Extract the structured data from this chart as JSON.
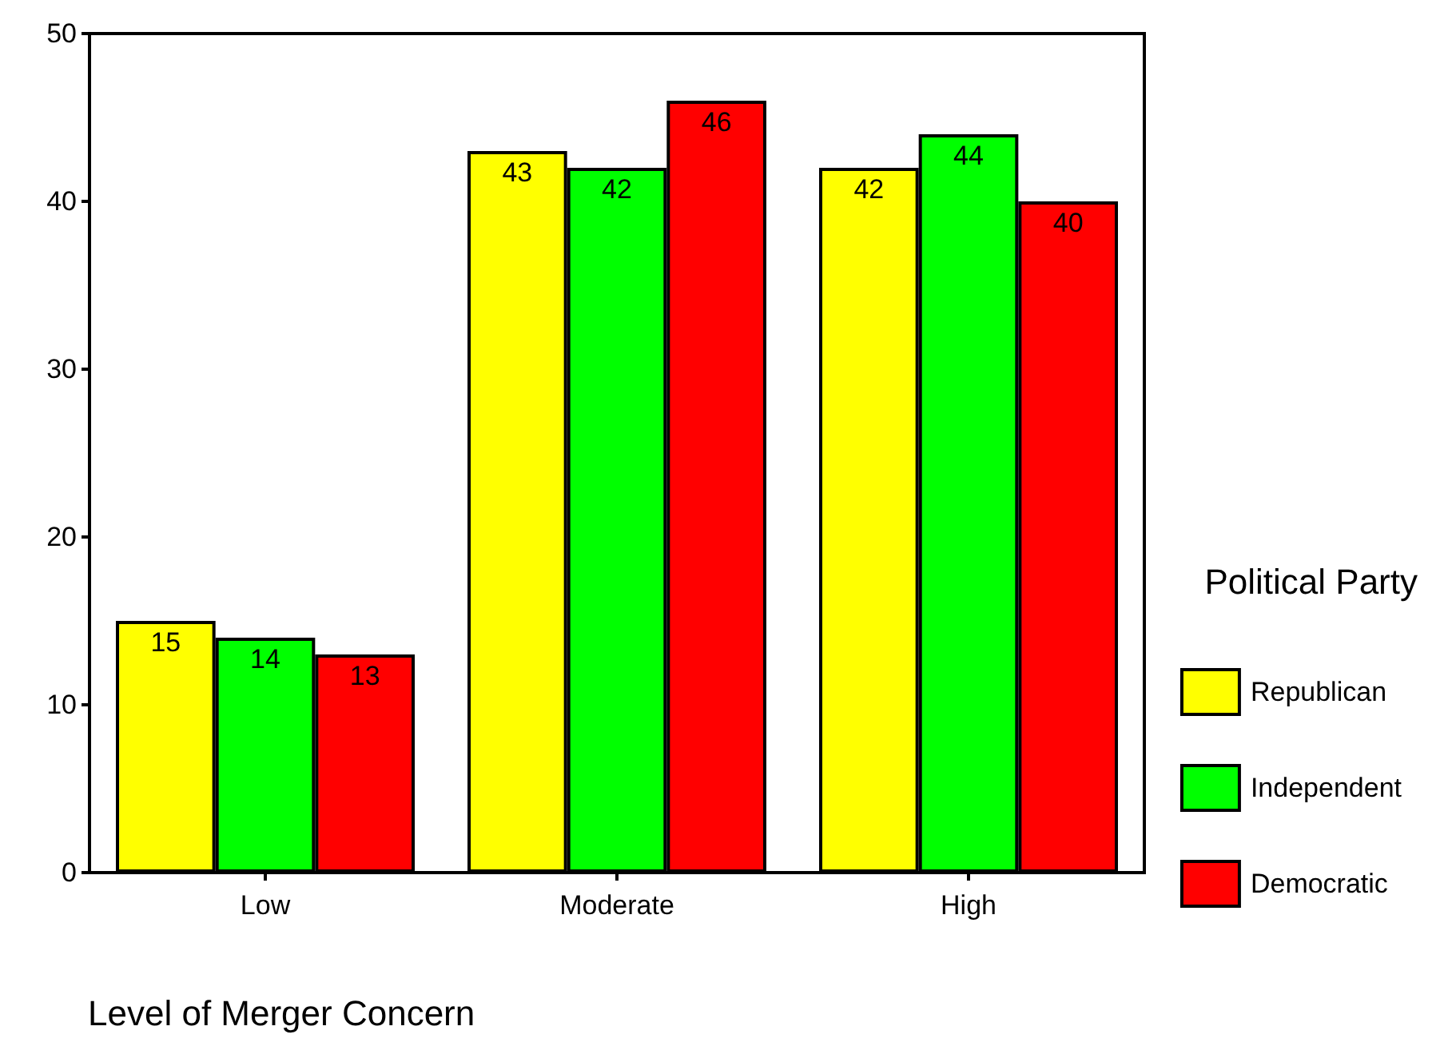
{
  "chart_data": {
    "type": "bar",
    "xlabel": "Level of Merger Concern",
    "legend_title": "Political Party",
    "categories": [
      "Low",
      "Moderate",
      "High"
    ],
    "series": [
      {
        "name": "Republican",
        "color": "#ffff00",
        "values": [
          15,
          43,
          42
        ]
      },
      {
        "name": "Independent",
        "color": "#00ff00",
        "values": [
          14,
          42,
          44
        ]
      },
      {
        "name": "Democratic",
        "color": "#ff0000",
        "values": [
          13,
          46,
          40
        ]
      }
    ],
    "ylim": [
      0,
      50
    ],
    "yticks": [
      0,
      10,
      20,
      30,
      40,
      50
    ],
    "data_labels": true,
    "legend": "right",
    "grid": false
  }
}
